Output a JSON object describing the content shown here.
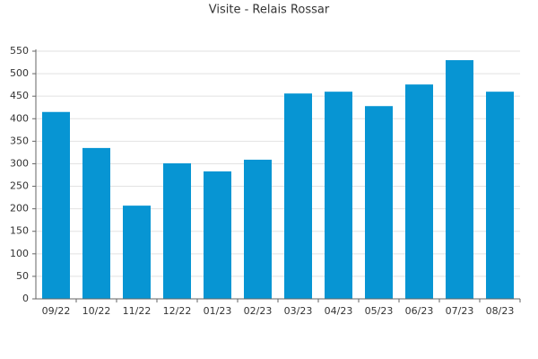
{
  "chart_data": {
    "type": "bar",
    "title": "Visite - Relais Rossar",
    "categories": [
      "09/22",
      "10/22",
      "11/22",
      "12/22",
      "01/23",
      "02/23",
      "03/23",
      "04/23",
      "05/23",
      "06/23",
      "07/23",
      "08/23"
    ],
    "values": [
      415,
      335,
      207,
      301,
      283,
      309,
      456,
      460,
      428,
      476,
      530,
      460
    ],
    "color": "#0795d3",
    "ylim": [
      0,
      550
    ],
    "yticks": [
      0,
      50,
      100,
      150,
      200,
      250,
      300,
      350,
      400,
      450,
      500,
      550
    ],
    "grid": true
  }
}
